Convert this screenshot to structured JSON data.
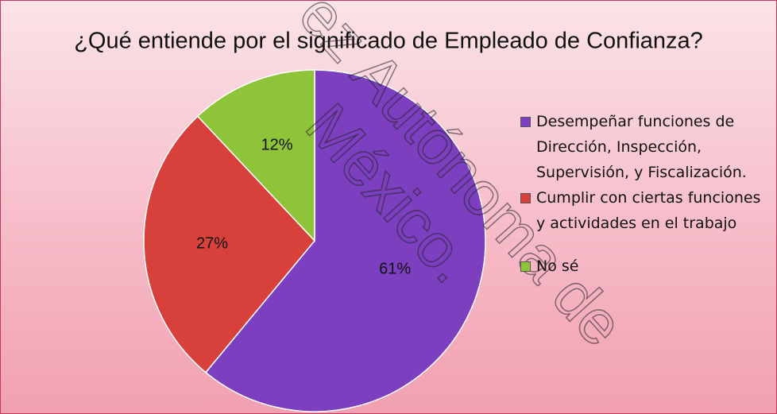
{
  "chart_data": {
    "type": "pie",
    "title": "¿Qué entiende por el significado de Empleado de Confianza?",
    "categories": [
      "Desempeñar funciones de Dirección, Inspección, Supervisión, y Fiscalización.",
      "Cumplir con ciertas funciones y actividades en el trabajo",
      "No sé"
    ],
    "values": [
      61,
      27,
      12
    ],
    "value_labels": [
      "61%",
      "27%",
      "12%"
    ],
    "colors": [
      "#7b3fbf",
      "#d8403c",
      "#8fc43a"
    ],
    "legend": "right",
    "watermark": [
      "ez Autónoma de",
      "México."
    ]
  }
}
